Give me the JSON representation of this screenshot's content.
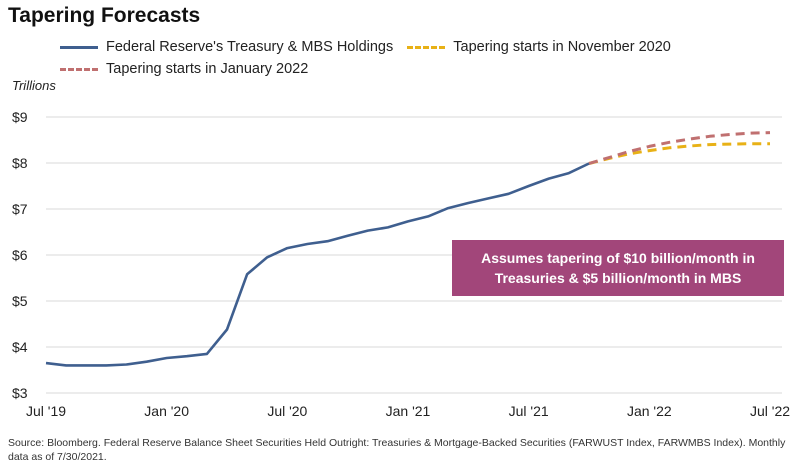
{
  "title": "Tapering Forecasts",
  "legend": {
    "holdings": "Federal Reserve's Treasury & MBS Holdings",
    "nov2020": "Tapering starts in November 2020",
    "jan2022": "Tapering starts in January 2022"
  },
  "unit_label": "Trillions",
  "annotation": {
    "line1": "Assumes tapering of $10 billion/month in",
    "line2": "Treasuries & $5 billion/month in MBS"
  },
  "source": "Source: Bloomberg. Federal Reserve Balance Sheet Securities Held Outright: Treasuries & Mortgage-Backed Securities (FARWUST Index, FARWMBS Index). Monthly data as of 7/30/2021.",
  "colors": {
    "holdings": "#3f5f8f",
    "nov2020": "#e8b116",
    "jan2022": "#c07070",
    "annotation_bg": "#a2467a",
    "grid": "#d9d9d9"
  },
  "chart_data": {
    "type": "line",
    "xlabel": "",
    "ylabel": "Trillions",
    "ylim": [
      3,
      9
    ],
    "xlim": [
      "2019-07",
      "2022-07"
    ],
    "y_ticks": [
      "$3",
      "$4",
      "$5",
      "$6",
      "$7",
      "$8",
      "$9"
    ],
    "x_ticks": [
      "Jul '19",
      "Jan '20",
      "Jul '20",
      "Jan '21",
      "Jul '21",
      "Jan '22",
      "Jul '22"
    ],
    "grid": true,
    "legend_position": "top",
    "series": [
      {
        "name": "Federal Reserve's Treasury & MBS Holdings",
        "style": "solid",
        "x": [
          "2019-07",
          "2019-08",
          "2019-09",
          "2019-10",
          "2019-11",
          "2019-12",
          "2020-01",
          "2020-02",
          "2020-03",
          "2020-04",
          "2020-05",
          "2020-06",
          "2020-07",
          "2020-08",
          "2020-09",
          "2020-10",
          "2020-11",
          "2020-12",
          "2021-01",
          "2021-02",
          "2021-03",
          "2021-04",
          "2021-05",
          "2021-06",
          "2021-07",
          "2021-08",
          "2021-09",
          "2021-10"
        ],
        "y": [
          3.65,
          3.6,
          3.6,
          3.6,
          3.62,
          3.68,
          3.76,
          3.8,
          3.85,
          4.38,
          5.58,
          5.95,
          6.15,
          6.24,
          6.3,
          6.42,
          6.53,
          6.6,
          6.73,
          6.84,
          7.02,
          7.13,
          7.23,
          7.33,
          7.5,
          7.66,
          7.78,
          7.99
        ]
      },
      {
        "name": "Tapering starts in November 2020",
        "style": "dashed",
        "x": [
          "2021-10",
          "2021-11",
          "2021-12",
          "2022-01",
          "2022-02",
          "2022-03",
          "2022-04",
          "2022-05",
          "2022-06",
          "2022-07"
        ],
        "y": [
          7.99,
          8.1,
          8.2,
          8.27,
          8.33,
          8.37,
          8.4,
          8.41,
          8.42,
          8.42
        ]
      },
      {
        "name": "Tapering starts in January 2022",
        "style": "dashed",
        "x": [
          "2021-10",
          "2021-11",
          "2021-12",
          "2022-01",
          "2022-02",
          "2022-03",
          "2022-04",
          "2022-05",
          "2022-06",
          "2022-07"
        ],
        "y": [
          7.99,
          8.12,
          8.25,
          8.36,
          8.45,
          8.52,
          8.58,
          8.62,
          8.65,
          8.66
        ]
      }
    ]
  }
}
